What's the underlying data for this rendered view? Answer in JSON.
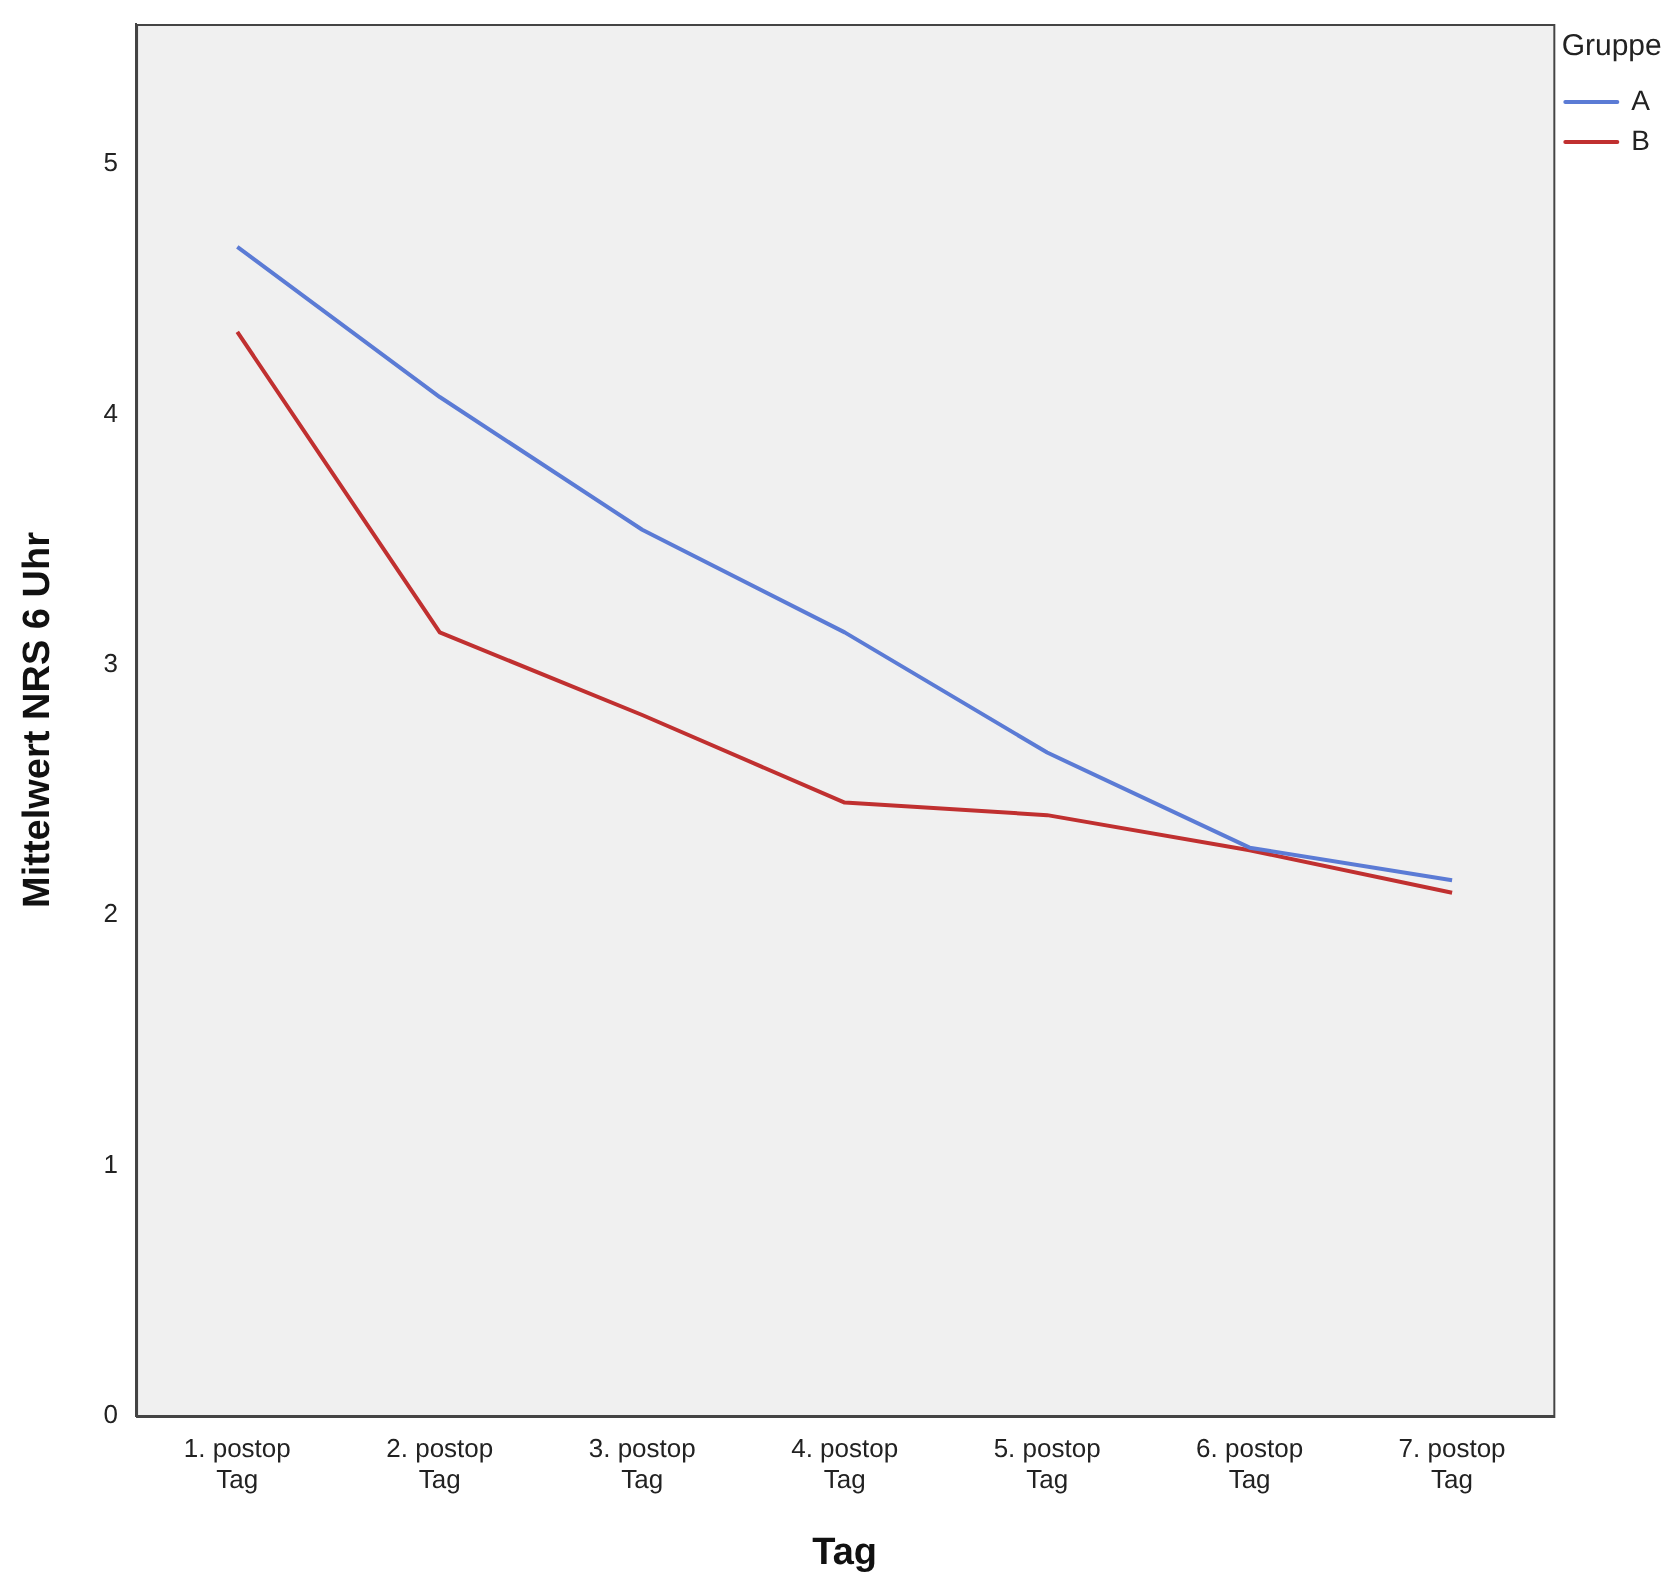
{
  "chart_data": {
    "type": "line",
    "xlabel": "Tag",
    "ylabel": "Mittelwert NRS 6 Uhr",
    "legend_title": "Gruppe",
    "legend": "top right",
    "categories": [
      "1. postop Tag",
      "2. postop Tag",
      "3. postop Tag",
      "4. postop Tag",
      "5. postop Tag",
      "6. postop Tag",
      "7. postop Tag"
    ],
    "series": [
      {
        "name": "A",
        "color": "#5b7bd5",
        "values": [
          4.67,
          4.07,
          3.54,
          3.13,
          2.65,
          2.27,
          2.14
        ]
      },
      {
        "name": "B",
        "color": "#c03030",
        "values": [
          4.33,
          3.13,
          2.8,
          2.45,
          2.4,
          2.26,
          2.09
        ]
      }
    ],
    "ylim": [
      0,
      5.56
    ],
    "yticks": [
      0,
      1,
      2,
      3,
      4,
      5
    ],
    "grid": false,
    "marker": "none",
    "line_style": "solid"
  }
}
